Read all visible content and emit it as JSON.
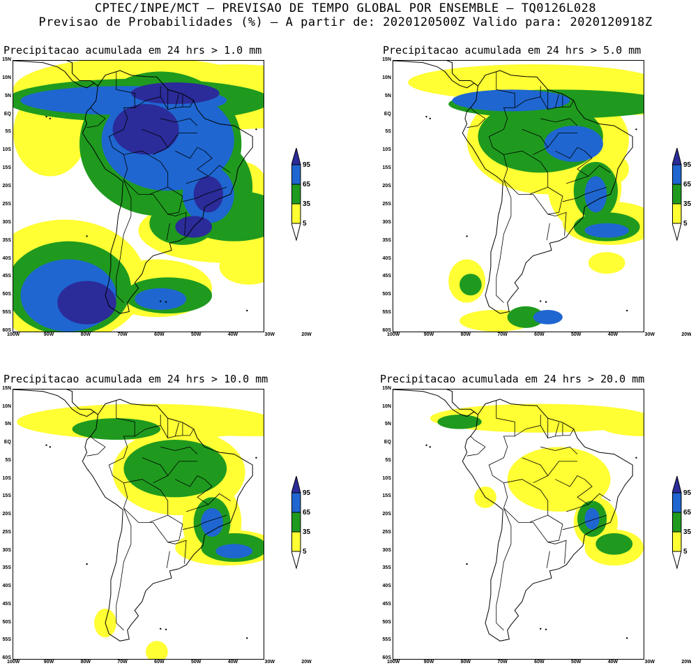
{
  "header": {
    "line1": "CPTEC/INPE/MCT – PREVISAO DE TEMPO GLOBAL POR ENSEMBLE – TQ0126L028",
    "line2": "Previsao de Probabilidades (%) –   A partir de: 2020120500Z  Valido para: 2020120918Z"
  },
  "panels": [
    {
      "title": "Precipitacao acumulada em 24 hrs > 1.0 mm"
    },
    {
      "title": "Precipitacao acumulada em 24 hrs > 5.0 mm"
    },
    {
      "title": "Precipitacao acumulada em 24 hrs > 10.0 mm"
    },
    {
      "title": "Precipitacao acumulada em 24 hrs > 20.0 mm"
    }
  ],
  "axes": {
    "lat_labels": [
      "15N",
      "10N",
      "5N",
      "EQ",
      "5S",
      "10S",
      "15S",
      "20S",
      "25S",
      "30S",
      "35S",
      "40S",
      "45S",
      "50S",
      "55S",
      "60S"
    ],
    "lon_labels": [
      "100W",
      "90W",
      "80W",
      "70W",
      "60W",
      "50W",
      "40W",
      "30W",
      "20W"
    ]
  },
  "colorbar": {
    "labels": [
      "95",
      "65",
      "35",
      "5"
    ],
    "colors": {
      "c5": "#ffff33",
      "c35": "#1f9a1f",
      "c65": "#1f66d0",
      "c95": "#2b2b99"
    }
  }
}
